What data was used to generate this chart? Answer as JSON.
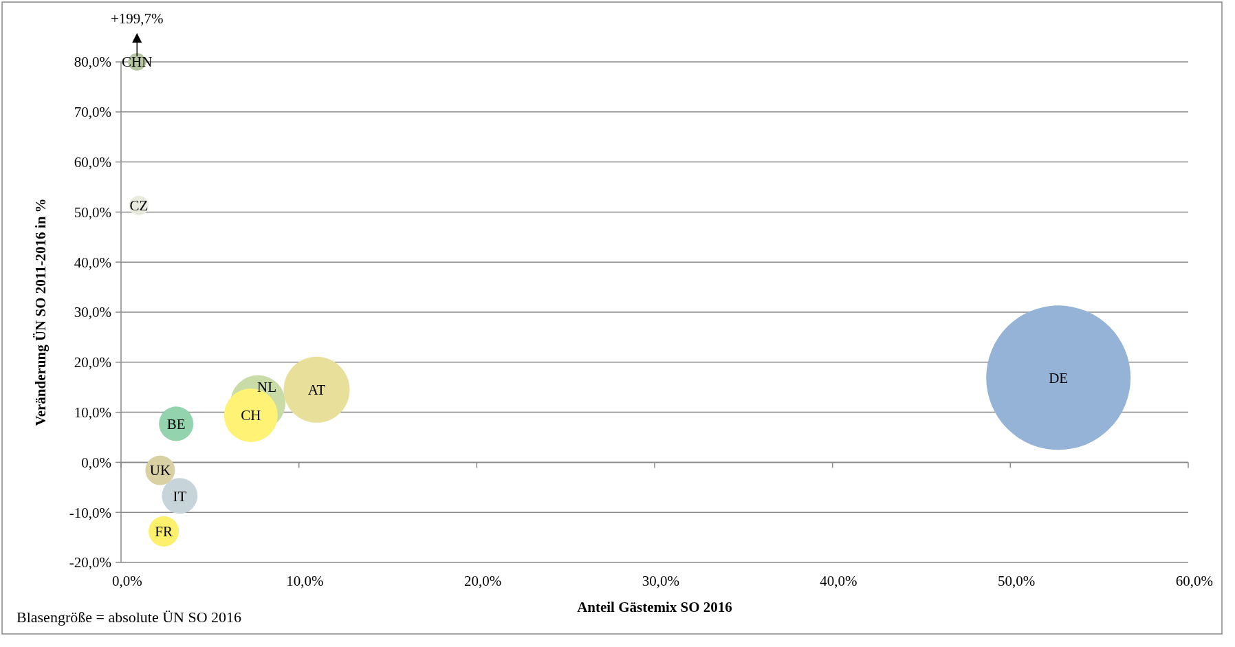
{
  "chart_data": {
    "type": "bubble",
    "xlabel": "Anteil Gästemix SO 2016",
    "ylabel": "Veränderung ÜN SO 2011-2016 in %",
    "xlim": [
      0,
      60
    ],
    "xticks": [
      {
        "value": 0,
        "label": "0,0%"
      },
      {
        "value": 10,
        "label": "10,0%"
      },
      {
        "value": 20,
        "label": "20,0%"
      },
      {
        "value": 30,
        "label": "30,0%"
      },
      {
        "value": 40,
        "label": "40,0%"
      },
      {
        "value": 50,
        "label": "50,0%"
      },
      {
        "value": 60,
        "label": "60,0%"
      }
    ],
    "ylim": [
      -20,
      80
    ],
    "yticks": [
      {
        "value": -20,
        "label": "-20,0%"
      },
      {
        "value": -10,
        "label": "-10,0%"
      },
      {
        "value": 0,
        "label": "0,0%"
      },
      {
        "value": 10,
        "label": "10,0%"
      },
      {
        "value": 20,
        "label": "20,0%"
      },
      {
        "value": 30,
        "label": "30,0%"
      },
      {
        "value": 40,
        "label": "40,0%"
      },
      {
        "value": 50,
        "label": "50,0%"
      },
      {
        "value": 60,
        "label": "60,0%"
      },
      {
        "value": 70,
        "label": "70,0%"
      },
      {
        "value": 80,
        "label": "80,0%"
      }
    ],
    "grid": "y",
    "series": [
      {
        "name": "CHN",
        "color": "#b5c4a0",
        "x": [
          0.9
        ],
        "values": [
          80
        ],
        "sizes": [
          0.015
        ]
      },
      {
        "name": "CZ",
        "color": "#e8ebdd",
        "x": [
          1.0
        ],
        "values": [
          51.3
        ],
        "sizes": [
          0.018
        ]
      },
      {
        "name": "BE",
        "color": "#93d3ae",
        "x": [
          3.1
        ],
        "values": [
          7.7
        ],
        "sizes": [
          0.057
        ]
      },
      {
        "name": "UK",
        "color": "#d9d0a4",
        "x": [
          2.2
        ],
        "values": [
          -1.6
        ],
        "sizes": [
          0.042
        ]
      },
      {
        "name": "IT",
        "color": "#c7d5da",
        "x": [
          3.3
        ],
        "values": [
          -6.7
        ],
        "sizes": [
          0.061
        ]
      },
      {
        "name": "FR",
        "color": "#fdf06c",
        "x": [
          2.4
        ],
        "values": [
          -13.8
        ],
        "sizes": [
          0.044
        ]
      },
      {
        "name": "NL",
        "color": "#c9dba6",
        "x": [
          7.7
        ],
        "values": [
          11.9
        ],
        "sizes": [
          0.145
        ]
      },
      {
        "name": "CH",
        "color": "#fff275",
        "x": [
          7.3
        ],
        "values": [
          9.4
        ],
        "sizes": [
          0.138
        ]
      },
      {
        "name": "AT",
        "color": "#e8e09a",
        "x": [
          11.0
        ],
        "values": [
          14.5
        ],
        "sizes": [
          0.209
        ]
      },
      {
        "name": "DE",
        "color": "#95b3d6",
        "x": [
          52.7
        ],
        "values": [
          16.9
        ],
        "sizes": [
          1
        ]
      }
    ],
    "annotations": [
      {
        "text": "+199,7%",
        "x": 0.9,
        "y": 80
      },
      "Blasengröße = absolute ÜN SO 2016"
    ]
  }
}
